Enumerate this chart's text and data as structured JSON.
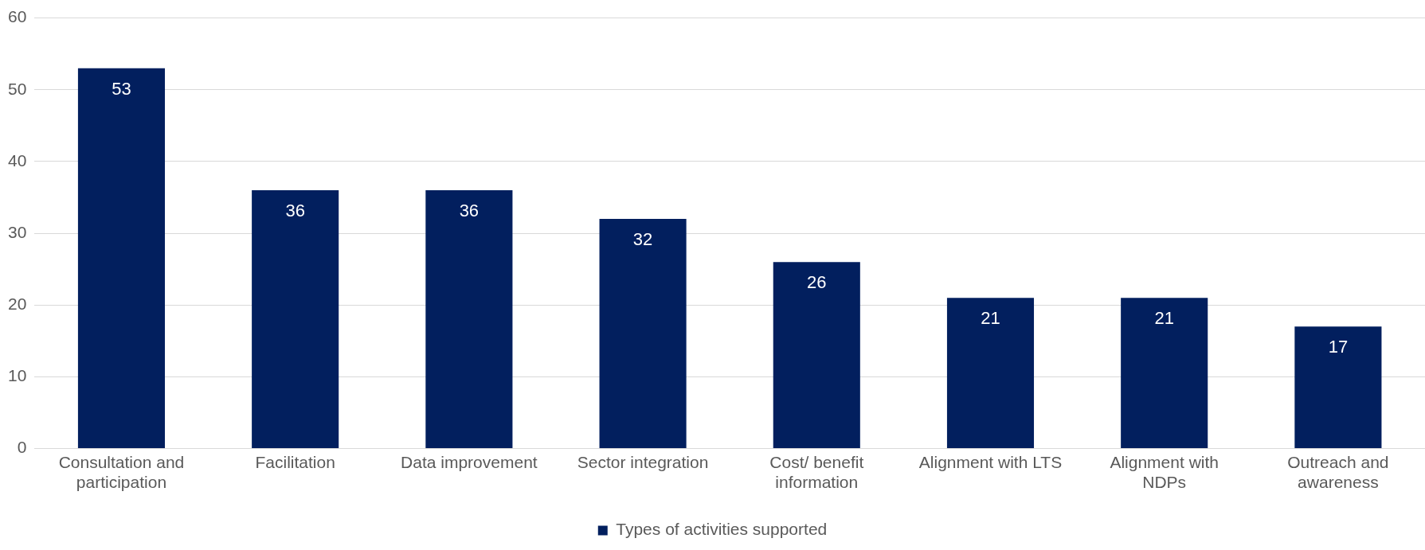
{
  "chart_data": {
    "type": "bar",
    "categories": [
      "Consultation and participation",
      "Facilitation",
      "Data improvement",
      "Sector integration",
      "Cost/ benefit information",
      "Alignment with LTS",
      "Alignment with NDPs",
      "Outreach and awareness"
    ],
    "series": [
      {
        "name": "Types of activities supported",
        "color": "#021f5e",
        "values": [
          53,
          36,
          36,
          32,
          26,
          21,
          21,
          17
        ]
      }
    ],
    "ylim": [
      0,
      60
    ],
    "yticks": [
      0,
      10,
      20,
      30,
      40,
      50,
      60
    ],
    "grid": "y",
    "legend": "bottom",
    "data_labels": true
  }
}
